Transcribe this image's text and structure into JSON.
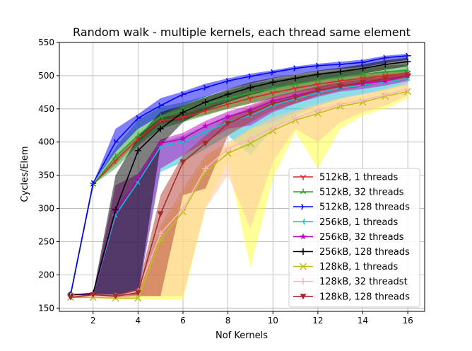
{
  "chart_data": {
    "type": "line",
    "title": "Random walk - multiple kernels, each thread same element",
    "xlabel": "Nof Kernels",
    "ylabel": "Cycles/Elem",
    "xlim": [
      0.5,
      16.75
    ],
    "ylim": [
      145,
      550
    ],
    "xticks": [
      2,
      4,
      6,
      8,
      10,
      12,
      14,
      16
    ],
    "yticks": [
      150,
      200,
      250,
      300,
      350,
      400,
      450,
      500,
      550
    ],
    "grid": true,
    "legend_position": "lower right",
    "x": [
      1,
      2,
      3,
      4,
      5,
      6,
      7,
      8,
      9,
      10,
      11,
      12,
      13,
      14,
      15,
      16
    ],
    "series": [
      {
        "name": "512kB, 1 threads",
        "color": "#d62728",
        "marker": "tri_down",
        "values": [
          170,
          336,
          372,
          405,
          432,
          437,
          447,
          457,
          466,
          474,
          481,
          487,
          492,
          496,
          500,
          504
        ],
        "band_low": [
          170,
          336,
          366,
          400,
          428,
          433,
          441,
          450,
          458,
          466,
          474,
          480,
          485,
          489,
          493,
          497
        ],
        "band_high": [
          170,
          336,
          378,
          410,
          437,
          442,
          452,
          462,
          473,
          480,
          487,
          493,
          498,
          502,
          506,
          510
        ]
      },
      {
        "name": "512kB, 32 threads",
        "color": "#2ca02c",
        "marker": "tri_up",
        "values": [
          170,
          336,
          378,
          410,
          438,
          448,
          458,
          466,
          474,
          481,
          487,
          493,
          498,
          502,
          506,
          508
        ],
        "band_low": [
          170,
          336,
          360,
          395,
          420,
          430,
          440,
          450,
          458,
          466,
          474,
          480,
          486,
          490,
          494,
          497
        ],
        "band_high": [
          170,
          336,
          392,
          433,
          453,
          460,
          469,
          477,
          487,
          493,
          499,
          504,
          508,
          512,
          515,
          517
        ]
      },
      {
        "name": "512kB, 128 threads",
        "color": "#0000ff",
        "marker": "tri_right",
        "values": [
          170,
          338,
          400,
          436,
          455,
          472,
          482,
          492,
          499,
          505,
          511,
          515,
          517,
          520,
          527,
          530
        ],
        "band_low": [
          170,
          338,
          385,
          420,
          440,
          455,
          468,
          480,
          488,
          496,
          502,
          507,
          510,
          513,
          519,
          524
        ],
        "band_high": [
          170,
          338,
          420,
          442,
          466,
          476,
          488,
          496,
          503,
          508,
          514,
          518,
          521,
          524,
          530,
          533
        ]
      },
      {
        "name": "256kB, 1 threads",
        "color": "#17becf",
        "marker": "tri_left",
        "values": [
          170,
          170,
          290,
          340,
          393,
          400,
          415,
          430,
          440,
          455,
          465,
          474,
          481,
          486,
          490,
          496
        ],
        "band_low": [
          170,
          170,
          170,
          170,
          355,
          370,
          390,
          410,
          380,
          420,
          440,
          455,
          465,
          472,
          478,
          486
        ],
        "band_high": [
          170,
          170,
          300,
          345,
          400,
          410,
          425,
          440,
          450,
          462,
          472,
          480,
          487,
          492,
          496,
          501
        ]
      },
      {
        "name": "256kB, 32 threads",
        "color": "#bf00bf",
        "marker": "star",
        "values": [
          170,
          170,
          295,
          346,
          398,
          405,
          424,
          438,
          448,
          462,
          470,
          478,
          484,
          488,
          492,
          500
        ],
        "band_low": [
          170,
          170,
          170,
          170,
          360,
          380,
          400,
          420,
          425,
          445,
          458,
          468,
          476,
          480,
          485,
          492
        ],
        "band_high": [
          170,
          170,
          335,
          352,
          404,
          414,
          432,
          446,
          456,
          468,
          476,
          484,
          490,
          494,
          498,
          506
        ]
      },
      {
        "name": "256kB, 128 threads",
        "color": "#000000",
        "marker": "plus",
        "values": [
          170,
          172,
          298,
          387,
          420,
          445,
          460,
          472,
          482,
          490,
          496,
          502,
          506,
          511,
          517,
          521
        ],
        "band_low": [
          170,
          172,
          170,
          170,
          395,
          430,
          448,
          460,
          471,
          480,
          487,
          493,
          498,
          503,
          509,
          514
        ],
        "band_high": [
          170,
          172,
          350,
          408,
          445,
          455,
          467,
          480,
          490,
          497,
          502,
          508,
          512,
          517,
          523,
          527
        ]
      },
      {
        "name": "128kB, 1 threads",
        "color": "#bcbd22",
        "marker": "x",
        "values": [
          166,
          166,
          165,
          165,
          253,
          295,
          355,
          383,
          398,
          417,
          433,
          443,
          454,
          460,
          469,
          476
        ],
        "band_low": [
          165,
          165,
          163,
          163,
          163,
          163,
          300,
          370,
          210,
          345,
          415,
          360,
          420,
          440,
          450,
          465
        ],
        "band_high": [
          167,
          167,
          167,
          170,
          270,
          320,
          375,
          395,
          420,
          430,
          445,
          455,
          465,
          470,
          480,
          487
        ]
      },
      {
        "name": "128kB, 32 threadst",
        "color": "#ffb6c1",
        "marker": "plus",
        "values": [
          168,
          168,
          168,
          175,
          262,
          300,
          360,
          390,
          405,
          422,
          436,
          448,
          457,
          463,
          471,
          480
        ],
        "band_low": [
          168,
          168,
          168,
          168,
          168,
          168,
          300,
          350,
          270,
          370,
          420,
          400,
          430,
          445,
          455,
          470
        ],
        "band_high": [
          168,
          168,
          168,
          178,
          275,
          330,
          380,
          400,
          420,
          438,
          448,
          458,
          467,
          473,
          480,
          490
        ]
      },
      {
        "name": "128kB, 128 threads",
        "color": "#a52a2a",
        "marker": "tri_down",
        "values": [
          166,
          170,
          168,
          173,
          292,
          370,
          398,
          428,
          443,
          458,
          467,
          478,
          484,
          490,
          495,
          500
        ],
        "band_low": [
          166,
          168,
          166,
          168,
          168,
          320,
          330,
          410,
          430,
          448,
          458,
          470,
          478,
          484,
          489,
          495
        ],
        "band_high": [
          166,
          172,
          170,
          180,
          320,
          380,
          410,
          438,
          452,
          466,
          474,
          484,
          490,
          495,
          500,
          505
        ]
      }
    ]
  }
}
